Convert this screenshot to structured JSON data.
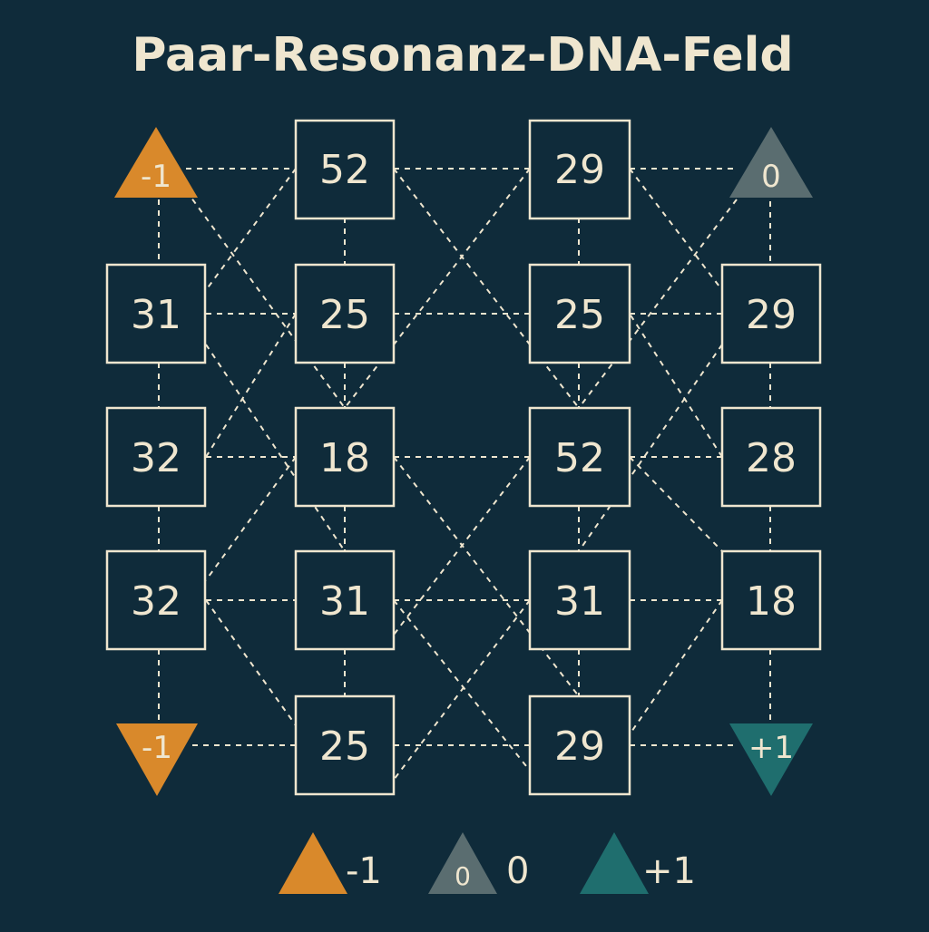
{
  "title": "Paar-Resonanz-DNA-Feld",
  "colors": {
    "background": "#0f2b3a",
    "line": "#efe6cf",
    "text": "#efe6cf",
    "negative": "#d9892b",
    "neutral": "#5a6d70",
    "positive": "#1f6e6e"
  },
  "nodes": {
    "n1": "52",
    "n2": "29",
    "n3": "31",
    "n4": "25",
    "n5": "25",
    "n6": "29",
    "n7": "32",
    "n8": "18",
    "n9": "52",
    "n10": "28",
    "n11": "32",
    "n12": "31",
    "n13": "31",
    "n14": "18",
    "n15": "25",
    "n16": "29"
  },
  "markers": {
    "top_left": {
      "label": "-1",
      "kind": "negative",
      "shape": "triangle-up"
    },
    "top_right": {
      "label": "0",
      "kind": "neutral",
      "shape": "triangle-up"
    },
    "bottom_left": {
      "label": "-1",
      "kind": "negative",
      "shape": "triangle-down"
    },
    "bottom_right": {
      "label": "+1",
      "kind": "positive",
      "shape": "triangle-down"
    }
  },
  "legend": [
    {
      "label": "-1",
      "kind": "negative",
      "icon_label": ""
    },
    {
      "label": "0",
      "kind": "neutral",
      "icon_label": "0"
    },
    {
      "label": "+1",
      "kind": "positive",
      "icon_label": ""
    }
  ]
}
